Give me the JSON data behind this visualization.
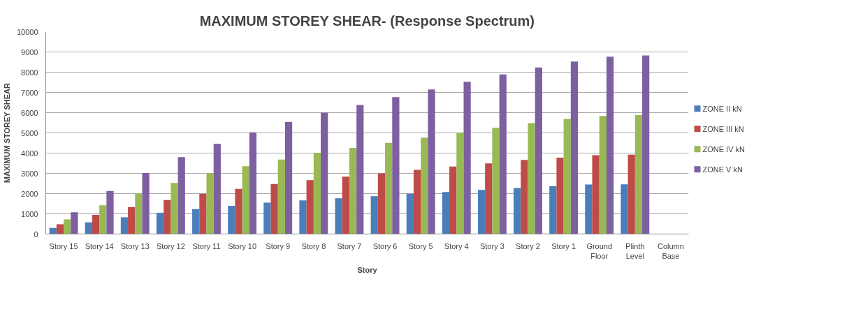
{
  "chart_data": {
    "type": "bar",
    "title": "MAXIMUM STOREY SHEAR- (Response Spectrum)",
    "xlabel": "Story",
    "ylabel": "MAXIMUM STOREY SHEAR",
    "categories": [
      "Story 15",
      "Story 14",
      "Story 13",
      "Story 12",
      "Story 11",
      "Story 10",
      "Story 9",
      "Story 8",
      "Story 7",
      "Story 6",
      "Story 5",
      "Story 4",
      "Story 3",
      "Story 2",
      "Story 1",
      "Ground Floor",
      "Plinth Level",
      "Column Base"
    ],
    "series": [
      {
        "name": "ZONE II kN",
        "color": "#4a7ebb",
        "values": [
          300,
          580,
          830,
          1050,
          1230,
          1400,
          1550,
          1660,
          1770,
          1870,
          1990,
          2080,
          2180,
          2280,
          2360,
          2450,
          2460,
          null
        ]
      },
      {
        "name": "ZONE III kN",
        "color": "#be4b48",
        "values": [
          480,
          950,
          1330,
          1680,
          1990,
          2230,
          2470,
          2660,
          2840,
          3000,
          3170,
          3340,
          3490,
          3660,
          3780,
          3900,
          3920,
          null
        ]
      },
      {
        "name": "ZONE IV kN",
        "color": "#98b954",
        "values": [
          720,
          1420,
          2000,
          2530,
          3000,
          3350,
          3680,
          4000,
          4260,
          4510,
          4760,
          5010,
          5250,
          5480,
          5690,
          5840,
          5880,
          null
        ]
      },
      {
        "name": "ZONE V kN",
        "color": "#7d60a0",
        "values": [
          1080,
          2130,
          3020,
          3800,
          4460,
          5030,
          5540,
          6000,
          6380,
          6770,
          7150,
          7530,
          7890,
          8230,
          8530,
          8770,
          8830,
          null
        ]
      }
    ],
    "ylim": [
      0,
      10000
    ],
    "yticks": [
      0,
      1000,
      2000,
      3000,
      4000,
      5000,
      6000,
      7000,
      8000,
      9000,
      10000
    ],
    "grid": "y",
    "legend": "right"
  }
}
